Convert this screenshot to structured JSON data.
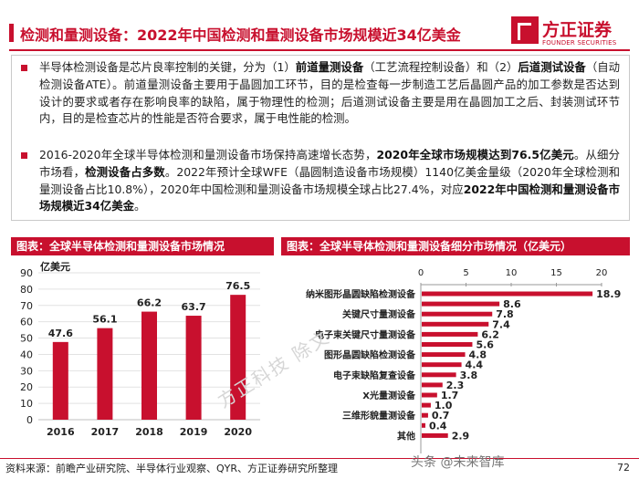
{
  "header": {
    "title": "检测和量测设备：2022年中国检测和量测设备市场规模近34亿美金",
    "logo_cn": "方正证券",
    "logo_en": "FOUNDER SECURITIES",
    "accent_color": "#c8102e"
  },
  "body": {
    "p1": {
      "t1": "半导体检测设备是芯片良率控制的关键，分为（1）",
      "b1": "前道量测设备",
      "t2": "（工艺流程控制设备）和（2）",
      "b2": "后道测试设备",
      "t3": "（自动检测设备ATE）。前道量测设备主要用于晶圆加工环节，目的是检查每一步制造工艺后晶圆产品的加工参数是否达到设计的要求或者存在影响良率的缺陷，属于物理性的检测；后道测试设备主要是用在晶圆加工之后、封装测试环节内，目的是检查芯片的性能是否符合要求，属于电性能的检测。"
    },
    "p2": {
      "t1": "2016-2020年全球半导体检测和量测设备市场保持高速增长态势，",
      "b1": "2020年全球市场规模达到76.5亿美元",
      "t2": "。从细分市场看，",
      "b2": "检测设备占多数",
      "t3": "。2022年预计全球WFE（晶圆制造设备市场规模）1140亿美金量级（2020年全球检测和量测设备占比10.8%），2020年中国检测和量测设备市场规模全球占比27.4%，对应",
      "b3": "2022年中国检测和量测设备市场规模近34亿美金",
      "t4": "。"
    }
  },
  "left_panel_title": "图表：全球半导体检测和量测设备市场情况",
  "right_panel_title": "图表：全球半导体检测和量测设备细分市场情况（亿美元）",
  "chart_data": [
    {
      "type": "bar",
      "title": "全球半导体检测和量测设备市场情况",
      "ylabel": "亿美元",
      "categories": [
        "2016",
        "2017",
        "2018",
        "2019",
        "2020"
      ],
      "values": [
        47.6,
        56.1,
        66.2,
        63.7,
        76.5
      ],
      "yticks": [
        0,
        10,
        20,
        30,
        40,
        50,
        60,
        70,
        80,
        90
      ],
      "ylim": [
        0,
        90
      ],
      "color": "#c8102e",
      "grid": true
    },
    {
      "type": "bar",
      "orientation": "horizontal",
      "title": "全球半导体检测和量测设备细分市场情况（亿美元）",
      "categories": [
        "纳米图形晶圆缺陷检测设备",
        "",
        "关键尺寸量测设备",
        "",
        "电子束关键尺寸量测设备",
        "",
        "图形晶圆缺陷检测设备",
        "",
        "电子束缺陷复查设备",
        "",
        "X光量测设备",
        "",
        "三维形貌量测设备",
        "",
        "其他"
      ],
      "values": [
        18.9,
        8.6,
        7.8,
        7.4,
        6.2,
        5.6,
        4.8,
        4.4,
        3.8,
        2.3,
        1.7,
        1.0,
        0.7,
        0.4,
        2.9
      ],
      "xticks": [
        0,
        5,
        10,
        15,
        20
      ],
      "xlim": [
        0,
        20
      ],
      "color": "#c8102e"
    }
  ],
  "footer": {
    "source": "资料来源：前瞻产业研究院、半导体行业观察、QYR、方正证券研究所整理",
    "page": "72",
    "watermark": "头条 @未来智库",
    "diag_watermark": "方正科技 除文"
  }
}
